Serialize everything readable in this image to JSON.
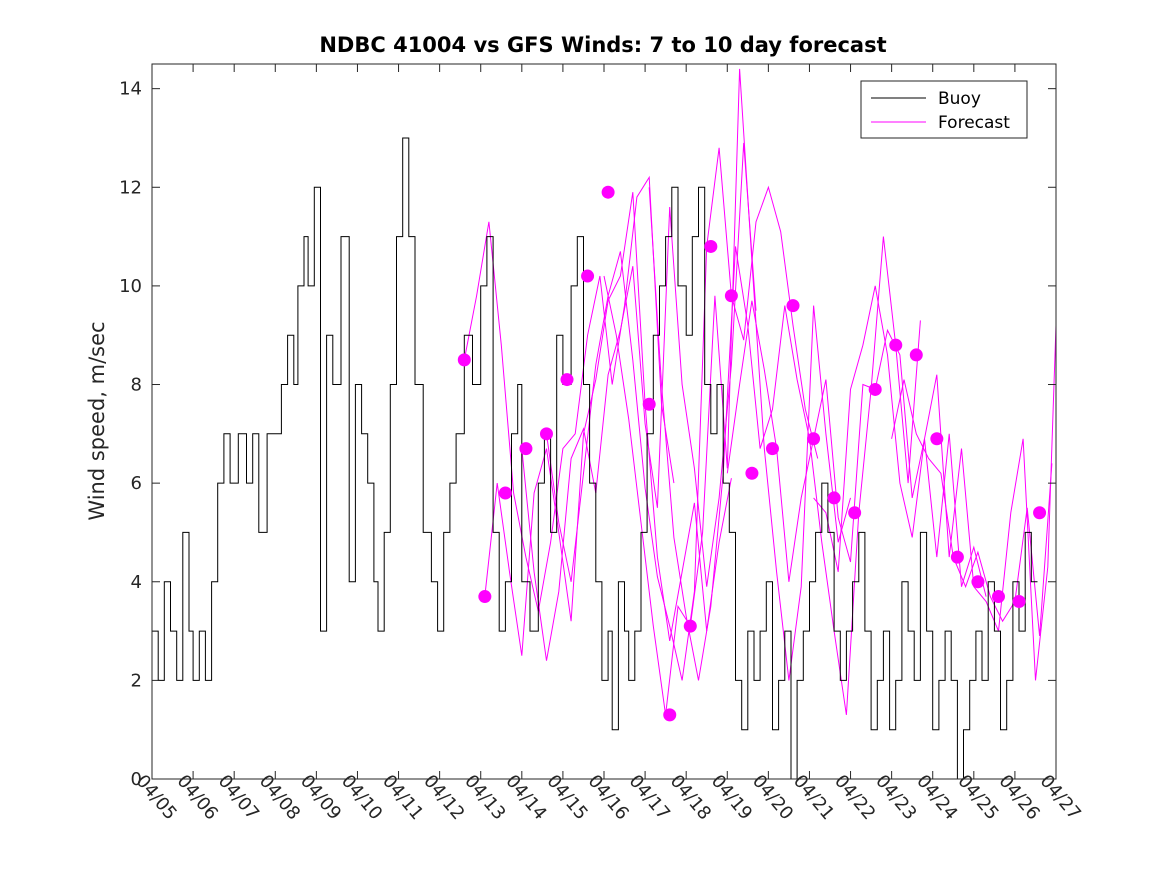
{
  "chart_data": {
    "type": "line",
    "title": "NDBC 41004 vs GFS Winds: 7 to 10 day forecast",
    "xlabel": "",
    "ylabel": "Wind speed, m/sec",
    "x_tick_labels": [
      "04/05",
      "04/06",
      "04/07",
      "04/08",
      "04/09",
      "04/10",
      "04/11",
      "04/12",
      "04/13",
      "04/14",
      "04/15",
      "04/16",
      "04/17",
      "04/18",
      "04/19",
      "04/20",
      "04/21",
      "04/22",
      "04/23",
      "04/24",
      "04/25",
      "04/26",
      "04/27"
    ],
    "y_ticks": [
      0,
      2,
      4,
      6,
      8,
      10,
      12,
      14
    ],
    "xlim_days": [
      0,
      22
    ],
    "ylim": [
      0,
      14.5
    ],
    "legend": {
      "placement": "top-right",
      "entries": [
        "Buoy",
        "Forecast"
      ]
    },
    "colors": {
      "buoy": "#000000",
      "forecast": "#ff00ff"
    },
    "buoy": {
      "name": "Buoy",
      "t": [
        0,
        0.15,
        0.3,
        0.45,
        0.6,
        0.75,
        0.9,
        1.0,
        1.15,
        1.3,
        1.45,
        1.6,
        1.75,
        1.9,
        2.1,
        2.3,
        2.45,
        2.6,
        2.8,
        3.0,
        3.15,
        3.3,
        3.45,
        3.55,
        3.7,
        3.8,
        3.95,
        4.1,
        4.25,
        4.4,
        4.6,
        4.8,
        4.95,
        5.1,
        5.25,
        5.4,
        5.5,
        5.65,
        5.8,
        5.95,
        6.1,
        6.25,
        6.4,
        6.6,
        6.8,
        6.95,
        7.1,
        7.25,
        7.4,
        7.6,
        7.8,
        8.0,
        8.15,
        8.3,
        8.45,
        8.6,
        8.75,
        8.9,
        9.0,
        9.2,
        9.4,
        9.55,
        9.7,
        9.85,
        10.0,
        10.2,
        10.35,
        10.5,
        10.65,
        10.8,
        10.95,
        11.1,
        11.2,
        11.35,
        11.5,
        11.6,
        11.75,
        11.9,
        12.05,
        12.2,
        12.35,
        12.5,
        12.65,
        12.8,
        13.0,
        13.15,
        13.3,
        13.45,
        13.6,
        13.75,
        13.9,
        14.05,
        14.2,
        14.35,
        14.5,
        14.65,
        14.8,
        14.95,
        15.1,
        15.25,
        15.4,
        15.55,
        15.7,
        15.85,
        16.0,
        16.15,
        16.3,
        16.45,
        16.6,
        16.75,
        16.9,
        17.05,
        17.2,
        17.35,
        17.5,
        17.65,
        17.8,
        17.95,
        18.1,
        18.25,
        18.4,
        18.55,
        18.7,
        18.85,
        19.0,
        19.15,
        19.3,
        19.45,
        19.6,
        19.75,
        19.9,
        20.05,
        20.2,
        20.35,
        20.5,
        20.65,
        20.8,
        20.95,
        21.1,
        21.25,
        21.4
      ],
      "v": [
        3,
        2,
        4,
        3,
        2,
        5,
        3,
        2,
        3,
        2,
        4,
        6,
        7,
        6,
        7,
        6,
        7,
        5,
        7,
        7,
        8,
        9,
        8,
        10,
        11,
        10,
        12,
        3,
        9,
        8,
        11,
        4,
        8,
        7,
        6,
        4,
        3,
        5,
        8,
        11,
        13,
        11,
        8,
        5,
        4,
        3,
        5,
        6,
        7,
        9,
        8,
        10,
        11,
        5,
        3,
        4,
        7,
        8,
        4,
        3,
        6,
        7,
        5,
        9,
        8,
        10,
        11,
        8,
        6,
        4,
        2,
        3,
        1,
        4,
        3,
        2,
        3,
        5,
        7,
        9,
        10,
        11,
        12,
        10,
        9,
        11,
        12,
        8,
        7,
        8,
        6,
        5,
        2,
        1,
        3,
        2,
        3,
        4,
        1,
        2,
        3,
        0,
        2,
        3,
        4,
        5,
        6,
        5,
        3,
        2,
        3,
        4,
        5,
        3,
        1,
        2,
        3,
        1,
        2,
        4,
        3,
        2,
        5,
        3,
        1,
        2,
        3,
        2,
        0,
        1,
        2,
        3,
        2,
        4,
        3,
        1,
        2,
        4,
        3,
        5,
        4
      ],
      "xlim_note": "days since 04/05 (tick index)"
    },
    "forecast_lines": [
      {
        "t": [
          7.6,
          7.9,
          8.2,
          8.5,
          8.8,
          9.1,
          9.4,
          9.7,
          10.0,
          10.3,
          10.6,
          10.9,
          11.2,
          11.5,
          11.8,
          12.1,
          12.4,
          12.7
        ],
        "v": [
          8.5,
          9.8,
          11.3,
          8.8,
          5.8,
          4.5,
          3.4,
          4.8,
          6.7,
          7.0,
          9.0,
          10.2,
          8.0,
          9.6,
          11.8,
          12.2,
          7.6,
          6.0
        ]
      },
      {
        "t": [
          8.1,
          8.4,
          8.7,
          9.0,
          9.3,
          9.6,
          9.9,
          10.2,
          10.5,
          10.8,
          11.1,
          11.4,
          11.7,
          12.0,
          12.3,
          12.6,
          12.9,
          13.2,
          13.5,
          13.8,
          14.1
        ],
        "v": [
          3.7,
          6.0,
          4.2,
          2.5,
          5.8,
          6.7,
          5.0,
          3.2,
          7.0,
          8.1,
          9.7,
          10.2,
          11.9,
          7.6,
          4.5,
          2.8,
          4.2,
          5.6,
          3.0,
          4.8,
          6.1
        ]
      },
      {
        "t": [
          9.0,
          9.3,
          9.6,
          9.9,
          10.2,
          10.5,
          10.8,
          11.1,
          11.4,
          11.7,
          12.0,
          12.3,
          12.6,
          12.9,
          13.2,
          13.5,
          13.8,
          14.1,
          14.4,
          14.7
        ],
        "v": [
          6.7,
          4.2,
          2.4,
          3.8,
          6.5,
          7.1,
          5.8,
          8.2,
          9.1,
          10.4,
          7.2,
          5.5,
          11.6,
          8.0,
          6.3,
          3.9,
          5.7,
          8.4,
          12.9,
          9.5
        ]
      },
      {
        "t": [
          9.6,
          9.9,
          10.2,
          10.5,
          10.8,
          11.1,
          11.4,
          11.7,
          12.0,
          12.3,
          12.6,
          12.9,
          13.2,
          13.5,
          13.8,
          14.1,
          14.4,
          14.7,
          15.0,
          15.3,
          15.6,
          15.9,
          16.2
        ],
        "v": [
          7.0,
          5.2,
          4.0,
          6.2,
          8.4,
          9.8,
          10.7,
          8.5,
          5.9,
          4.1,
          3.1,
          2.0,
          3.8,
          10.8,
          12.8,
          9.8,
          8.9,
          11.3,
          12.0,
          11.1,
          9.2,
          7.5,
          6.5
        ]
      },
      {
        "t": [
          11.0,
          11.3,
          11.6,
          11.9,
          12.2,
          12.5,
          12.8,
          13.1,
          13.4,
          13.7,
          14.0,
          14.3,
          14.6,
          14.9,
          15.2,
          15.5,
          15.8,
          16.1,
          16.4,
          16.7,
          17.0
        ],
        "v": [
          10.2,
          9.0,
          7.3,
          5.2,
          3.1,
          1.3,
          3.5,
          3.1,
          5.0,
          9.8,
          6.3,
          14.4,
          10.5,
          6.7,
          4.2,
          2.0,
          3.9,
          9.6,
          7.0,
          4.8,
          5.7
        ]
      },
      {
        "t": [
          12.1,
          12.4,
          12.7,
          13.0,
          13.3,
          13.6,
          13.9,
          14.2,
          14.5,
          14.8,
          15.1,
          15.4,
          15.7,
          16.0,
          16.3,
          16.6,
          16.9,
          17.2,
          17.5,
          17.8,
          18.1,
          18.4,
          18.7
        ],
        "v": [
          12.0,
          8.0,
          4.9,
          3.3,
          2.0,
          3.5,
          6.2,
          10.8,
          9.2,
          6.7,
          7.5,
          9.6,
          8.1,
          6.9,
          4.8,
          3.0,
          1.3,
          5.4,
          7.9,
          11.0,
          8.8,
          6.0,
          9.3
        ]
      },
      {
        "t": [
          14.0,
          14.3,
          14.6,
          14.9,
          15.2,
          15.5,
          15.8,
          16.1,
          16.4,
          16.7,
          17.0,
          17.3,
          17.6,
          17.9,
          18.2,
          18.5,
          18.8,
          19.1,
          19.4,
          19.7,
          20.0,
          20.3
        ],
        "v": [
          6.2,
          8.0,
          9.7,
          8.3,
          6.7,
          4.0,
          5.7,
          6.9,
          8.1,
          5.3,
          4.4,
          8.0,
          7.9,
          9.1,
          8.6,
          5.7,
          6.9,
          4.5,
          7.0,
          3.9,
          4.7,
          3.7
        ]
      },
      {
        "t": [
          16.1,
          16.4,
          16.7,
          17.0,
          17.3,
          17.6,
          17.9,
          18.2,
          18.5,
          18.8,
          19.1,
          19.4,
          19.7,
          20.0,
          20.3,
          20.6,
          20.9,
          21.2,
          21.5,
          21.8,
          22.0
        ],
        "v": [
          5.7,
          5.4,
          4.2,
          7.9,
          8.8,
          10.0,
          8.6,
          6.0,
          4.9,
          6.9,
          8.2,
          4.5,
          6.7,
          3.9,
          3.6,
          3.0,
          5.4,
          6.9,
          2.0,
          4.3,
          9.2
        ]
      },
      {
        "t": [
          18.0,
          18.3,
          18.6,
          18.9,
          19.2,
          19.5,
          19.8,
          20.1,
          20.4,
          20.7,
          21.0,
          21.3,
          21.6,
          21.9
        ],
        "v": [
          6.9,
          8.1,
          7.0,
          6.5,
          6.2,
          4.5,
          3.9,
          4.6,
          3.7,
          3.2,
          3.6,
          5.5,
          2.9,
          6.4
        ]
      }
    ],
    "forecast_markers": {
      "t": [
        7.6,
        8.1,
        8.6,
        9.1,
        9.6,
        10.1,
        10.6,
        11.1,
        12.1,
        12.6,
        13.1,
        13.6,
        14.1,
        14.6,
        15.1,
        15.6,
        16.1,
        16.6,
        17.1,
        17.6,
        18.1,
        18.6,
        19.1,
        19.6,
        20.1,
        20.6,
        21.1,
        21.6
      ],
      "v": [
        8.5,
        3.7,
        5.8,
        6.7,
        7.0,
        8.1,
        10.2,
        11.9,
        7.6,
        1.3,
        3.1,
        10.8,
        9.8,
        6.2,
        6.7,
        9.6,
        6.9,
        5.7,
        5.4,
        7.9,
        8.8,
        8.6,
        6.9,
        4.5,
        4.0,
        3.7,
        3.6,
        5.4
      ]
    }
  }
}
